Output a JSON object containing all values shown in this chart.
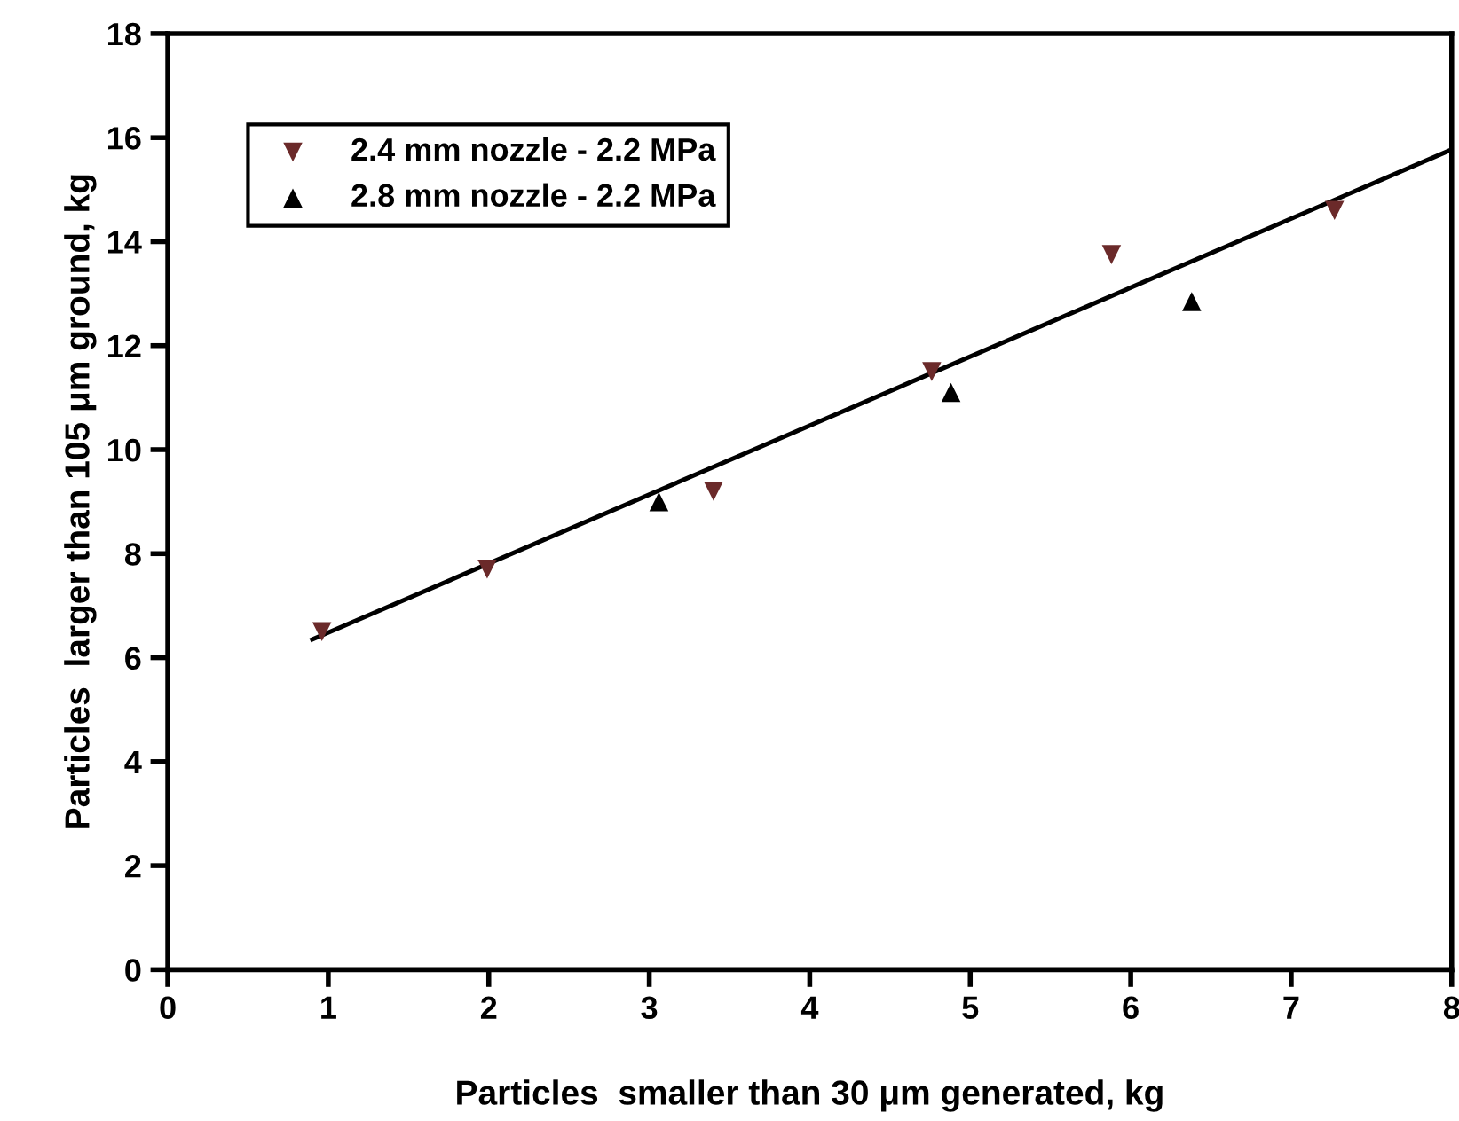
{
  "chart_data": {
    "type": "scatter",
    "xlabel": "Particles  smaller than 30 μm generated, kg",
    "ylabel": "Particles  larger than 105 μm ground, kg",
    "xlim": [
      0,
      8
    ],
    "ylim": [
      0,
      18
    ],
    "xticks": [
      0,
      1,
      2,
      3,
      4,
      5,
      6,
      7,
      8
    ],
    "yticks": [
      0,
      2,
      4,
      6,
      8,
      10,
      12,
      14,
      16,
      18
    ],
    "grid": false,
    "legend": "top left",
    "series": [
      {
        "name": "2.4 mm nozzle - 2.2 MPa",
        "color": "#6b2a2a",
        "marker": "triangle_down",
        "x": [
          0.96,
          1.99,
          3.4,
          4.76,
          5.88,
          7.27
        ],
        "values": [
          6.5,
          7.7,
          9.2,
          11.5,
          13.75,
          14.6
        ]
      },
      {
        "name": "2.8 mm nozzle - 2.2 MPa",
        "color": "#000000",
        "marker": "triangle",
        "x": [
          3.06,
          4.88,
          6.38
        ],
        "values": [
          9.0,
          11.1,
          12.85
        ]
      },
      {
        "type": "line",
        "color": "#000000",
        "marker": "none",
        "line_style": "solid",
        "x": [
          0.9,
          8
        ],
        "values": [
          6.35,
          15.77
        ]
      }
    ]
  }
}
